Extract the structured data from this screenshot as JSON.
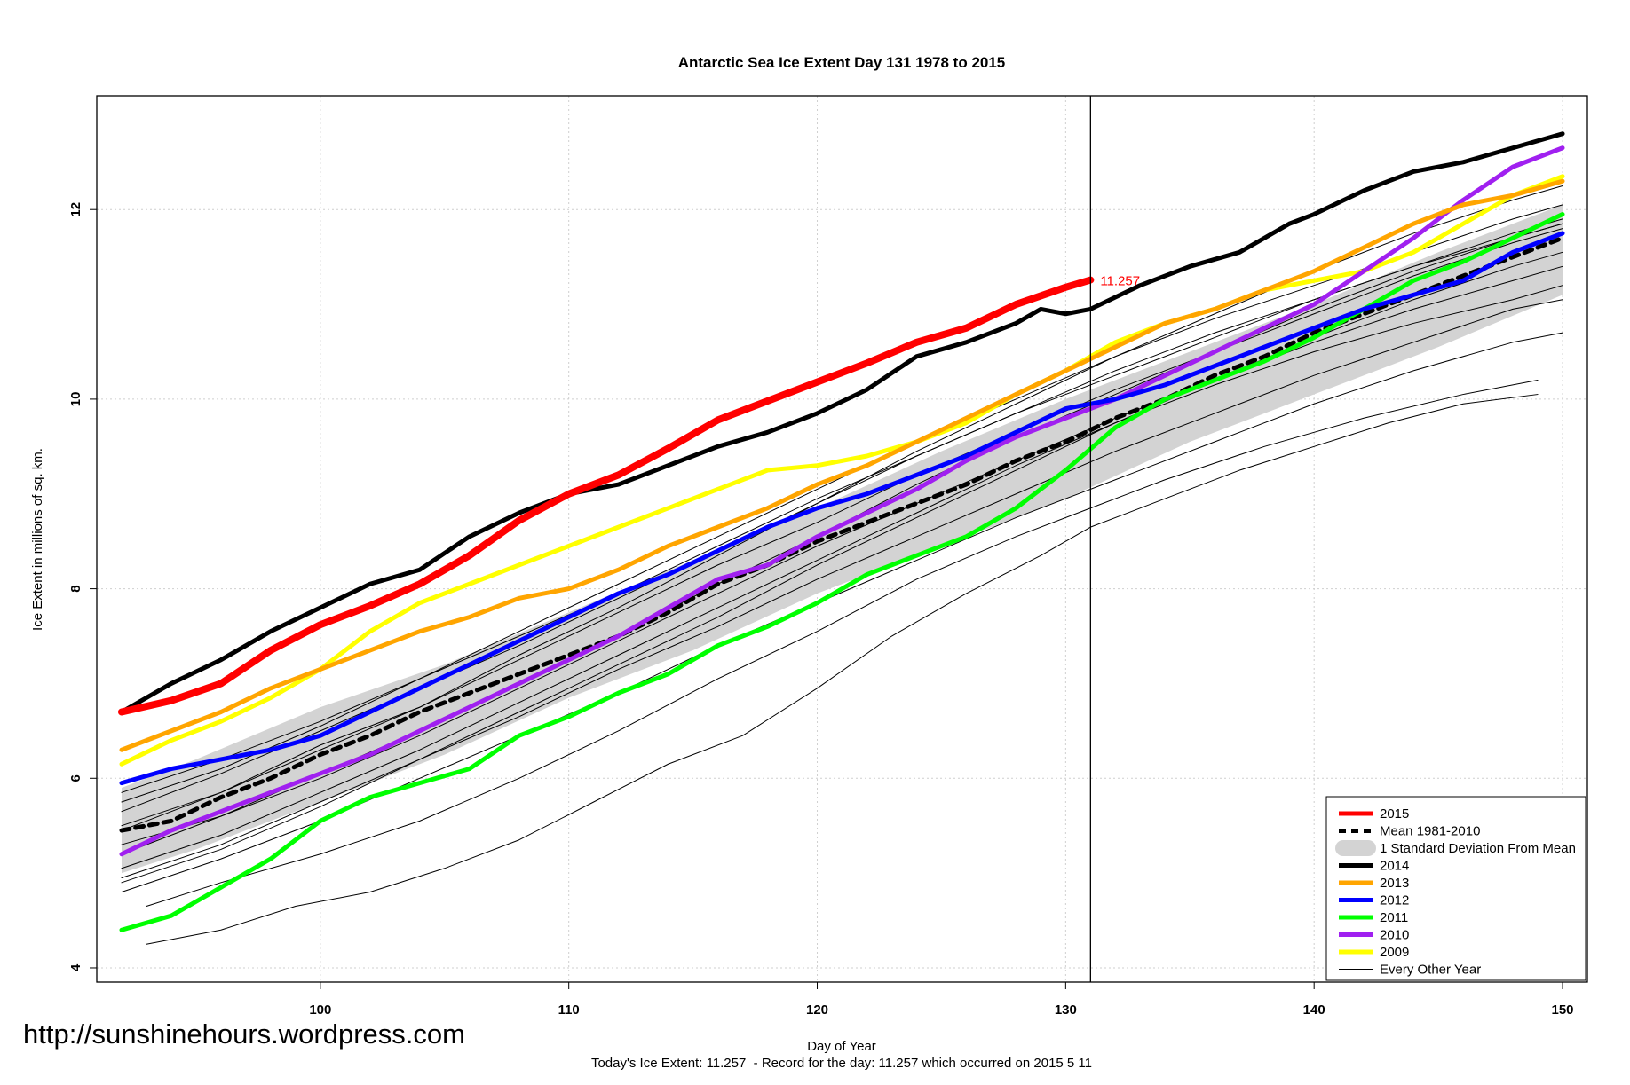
{
  "watermark": "http://sunshinehours.wordpress.com",
  "chart_data": {
    "type": "line",
    "title": "Antarctic Sea Ice Extent Day 131 1978 to 2015",
    "xlabel": "Day of Year",
    "ylabel": "Ice Extent in millions of sq. km.",
    "footnote": "Today's Ice Extent: 11.257  - Record for the day: 11.257 which occurred on 2015 5 11",
    "xlim": [
      91,
      151
    ],
    "ylim": [
      3.85,
      13.2
    ],
    "xticks": [
      100,
      110,
      120,
      130,
      140,
      150
    ],
    "yticks": [
      4,
      6,
      8,
      10,
      12
    ],
    "grid": true,
    "current_day": 131,
    "current_value_label": "11.257",
    "legend_position": "bottom-right",
    "legend": [
      {
        "label": "2015",
        "color": "#ff0000",
        "style": "thick"
      },
      {
        "label": "Mean 1981-2010",
        "color": "#000000",
        "style": "dashed"
      },
      {
        "label": "1 Standard Deviation From Mean",
        "color": "#d3d3d3",
        "style": "band"
      },
      {
        "label": "2014",
        "color": "#000000",
        "style": "thick"
      },
      {
        "label": "2013",
        "color": "#ffa500",
        "style": "thick"
      },
      {
        "label": "2012",
        "color": "#0000ff",
        "style": "thick"
      },
      {
        "label": "2011",
        "color": "#00ff00",
        "style": "thick"
      },
      {
        "label": "2010",
        "color": "#a020f0",
        "style": "thick"
      },
      {
        "label": "2009",
        "color": "#ffff00",
        "style": "thick"
      },
      {
        "label": "Every Other Year",
        "color": "#000000",
        "style": "thin"
      }
    ],
    "std_band": {
      "x": [
        92,
        95,
        100,
        105,
        110,
        115,
        120,
        125,
        130,
        135,
        140,
        145,
        150
      ],
      "upper": [
        5.9,
        6.2,
        6.75,
        7.2,
        7.75,
        8.3,
        8.85,
        9.45,
        10.0,
        10.5,
        11.0,
        11.55,
        12.05
      ],
      "lower": [
        5.0,
        5.25,
        5.75,
        6.25,
        6.85,
        7.35,
        7.95,
        8.45,
        8.95,
        9.55,
        10.05,
        10.55,
        11.1
      ]
    },
    "series": [
      {
        "name": "Every Other Year",
        "color": "#000000",
        "width": 1,
        "x": [
          92,
          96,
          100,
          104,
          108,
          112,
          116,
          120,
          124,
          128,
          132,
          136,
          140,
          144,
          148,
          150
        ],
        "y": [
          5.5,
          5.85,
          6.35,
          6.75,
          7.3,
          7.8,
          8.35,
          8.9,
          9.45,
          9.95,
          10.45,
          10.9,
          11.35,
          11.75,
          12.1,
          12.25
        ]
      },
      {
        "name": "Every Other Year",
        "color": "#000000",
        "width": 1,
        "x": [
          92,
          96,
          100,
          104,
          108,
          112,
          116,
          120,
          124,
          128,
          132,
          136,
          140,
          144,
          148,
          150
        ],
        "y": [
          5.2,
          5.6,
          6.05,
          6.5,
          7.0,
          7.5,
          8.05,
          8.55,
          9.1,
          9.6,
          10.05,
          10.5,
          10.95,
          11.35,
          11.7,
          11.85
        ]
      },
      {
        "name": "Every Other Year",
        "color": "#000000",
        "width": 1,
        "x": [
          92,
          96,
          100,
          104,
          108,
          112,
          116,
          120,
          124,
          128,
          132,
          136,
          140,
          144,
          148,
          150
        ],
        "y": [
          5.85,
          6.2,
          6.6,
          7.05,
          7.55,
          8.05,
          8.55,
          9.05,
          9.55,
          10.0,
          10.45,
          10.85,
          11.2,
          11.55,
          11.9,
          12.05
        ]
      },
      {
        "name": "Every Other Year",
        "color": "#000000",
        "width": 1,
        "x": [
          92,
          96,
          100,
          104,
          108,
          112,
          116,
          120,
          124,
          128,
          132,
          136,
          140,
          144,
          148,
          150
        ],
        "y": [
          4.95,
          5.3,
          5.75,
          6.2,
          6.7,
          7.2,
          7.7,
          8.25,
          8.75,
          9.25,
          9.75,
          10.2,
          10.65,
          11.05,
          11.4,
          11.55
        ]
      },
      {
        "name": "Every Other Year",
        "color": "#000000",
        "width": 1,
        "x": [
          92,
          96,
          100,
          104,
          108,
          112,
          116,
          120,
          124,
          128,
          132,
          136,
          140,
          144,
          148,
          150
        ],
        "y": [
          5.65,
          6.05,
          6.5,
          6.95,
          7.4,
          7.9,
          8.4,
          8.9,
          9.4,
          9.85,
          10.3,
          10.7,
          11.05,
          11.4,
          11.75,
          11.9
        ]
      },
      {
        "name": "Every Other Year",
        "color": "#000000",
        "width": 1,
        "x": [
          92,
          96,
          100,
          104,
          108,
          112,
          116,
          120,
          124,
          128,
          132,
          136,
          140,
          144,
          148,
          150
        ],
        "y": [
          5.3,
          5.6,
          6.0,
          6.45,
          6.95,
          7.45,
          7.95,
          8.45,
          8.9,
          9.35,
          9.8,
          10.2,
          10.6,
          10.95,
          11.25,
          11.4
        ]
      },
      {
        "name": "Every Other Year",
        "color": "#000000",
        "width": 1,
        "x": [
          92,
          96,
          100,
          104,
          108,
          112,
          116,
          120,
          124,
          128,
          132,
          136,
          140,
          144,
          148,
          150
        ],
        "y": [
          5.05,
          5.4,
          5.85,
          6.3,
          6.8,
          7.3,
          7.8,
          8.3,
          8.8,
          9.3,
          9.75,
          10.15,
          10.5,
          10.8,
          11.05,
          11.2
        ]
      },
      {
        "name": "Every Other Year",
        "color": "#000000",
        "width": 1,
        "x": [
          92,
          96,
          100,
          104,
          108,
          112,
          116,
          120,
          124,
          128,
          132,
          136,
          140,
          144,
          148,
          150
        ],
        "y": [
          5.75,
          6.1,
          6.55,
          7.05,
          7.5,
          7.95,
          8.45,
          8.95,
          9.4,
          9.85,
          10.25,
          10.65,
          11.05,
          11.4,
          11.7,
          11.85
        ]
      },
      {
        "name": "Every Other Year",
        "color": "#000000",
        "width": 1,
        "x": [
          92,
          96,
          100,
          104,
          108,
          112,
          116,
          120,
          124,
          128,
          132,
          136,
          140,
          144,
          148,
          150
        ],
        "y": [
          4.9,
          5.25,
          5.7,
          6.2,
          6.65,
          7.15,
          7.6,
          8.1,
          8.55,
          9.0,
          9.45,
          9.85,
          10.25,
          10.6,
          10.95,
          11.05
        ]
      },
      {
        "name": "Every Other Year",
        "color": "#000000",
        "width": 1,
        "x": [
          92,
          96,
          100,
          104,
          108,
          112,
          116,
          120,
          124,
          128,
          132,
          136,
          140,
          144,
          148,
          150
        ],
        "y": [
          5.45,
          5.85,
          6.3,
          6.75,
          7.25,
          7.75,
          8.25,
          8.7,
          9.2,
          9.65,
          10.1,
          10.5,
          10.9,
          11.3,
          11.65,
          11.8
        ]
      },
      {
        "name": "Every Other Year",
        "color": "#000000",
        "width": 1,
        "x": [
          92,
          96,
          100,
          104,
          108,
          112,
          116,
          120,
          124,
          128,
          132,
          136,
          140,
          144,
          148,
          150
        ],
        "y": [
          4.8,
          5.15,
          5.55,
          6.0,
          6.45,
          6.9,
          7.4,
          7.85,
          8.3,
          8.75,
          9.15,
          9.55,
          9.95,
          10.3,
          10.6,
          10.7
        ]
      },
      {
        "name": "Every Other Year",
        "color": "#000000",
        "width": 1,
        "x": [
          93,
          96,
          100,
          104,
          108,
          112,
          116,
          120,
          124,
          128,
          131,
          134,
          138,
          142,
          146,
          149
        ],
        "y": [
          4.65,
          4.9,
          5.2,
          5.55,
          6.0,
          6.5,
          7.05,
          7.55,
          8.1,
          8.55,
          8.85,
          9.15,
          9.5,
          9.8,
          10.05,
          10.2
        ]
      },
      {
        "name": "Every Other Year",
        "color": "#000000",
        "width": 1,
        "x": [
          93,
          96,
          99,
          102,
          105,
          108,
          111,
          114,
          117,
          120,
          123,
          126,
          129,
          131,
          134,
          137,
          140,
          143,
          146,
          149
        ],
        "y": [
          4.25,
          4.4,
          4.65,
          4.8,
          5.05,
          5.35,
          5.75,
          6.15,
          6.45,
          6.95,
          7.5,
          7.95,
          8.35,
          8.65,
          8.95,
          9.25,
          9.5,
          9.75,
          9.95,
          10.05
        ]
      },
      {
        "name": "Mean 1981-2010",
        "color": "#000000",
        "width": 5,
        "dashed": true,
        "x": [
          92,
          94,
          96,
          98,
          100,
          102,
          104,
          106,
          108,
          110,
          112,
          114,
          116,
          118,
          120,
          122,
          124,
          126,
          128,
          130,
          132,
          134,
          136,
          138,
          140,
          142,
          144,
          146,
          148,
          150
        ],
        "y": [
          5.45,
          5.55,
          5.8,
          6.0,
          6.25,
          6.45,
          6.7,
          6.9,
          7.1,
          7.3,
          7.5,
          7.75,
          8.05,
          8.25,
          8.5,
          8.7,
          8.9,
          9.1,
          9.35,
          9.55,
          9.8,
          10.0,
          10.25,
          10.45,
          10.7,
          10.9,
          11.1,
          11.3,
          11.5,
          11.7
        ]
      },
      {
        "name": "2009",
        "color": "#ffff00",
        "width": 5,
        "x": [
          92,
          94,
          96,
          98,
          100,
          102,
          104,
          106,
          108,
          110,
          112,
          114,
          116,
          118,
          120,
          122,
          124,
          126,
          128,
          130,
          132,
          134,
          136,
          138,
          140,
          142,
          144,
          146,
          148,
          150
        ],
        "y": [
          6.15,
          6.4,
          6.6,
          6.85,
          7.15,
          7.55,
          7.85,
          8.05,
          8.25,
          8.45,
          8.65,
          8.85,
          9.05,
          9.25,
          9.3,
          9.4,
          9.55,
          9.75,
          10.05,
          10.3,
          10.6,
          10.8,
          10.95,
          11.15,
          11.25,
          11.35,
          11.55,
          11.85,
          12.15,
          12.35
        ]
      },
      {
        "name": "2010",
        "color": "#a020f0",
        "width": 5,
        "x": [
          92,
          94,
          96,
          98,
          100,
          102,
          104,
          106,
          108,
          110,
          112,
          114,
          116,
          118,
          120,
          122,
          124,
          126,
          128,
          130,
          132,
          134,
          136,
          138,
          140,
          142,
          144,
          146,
          148,
          150
        ],
        "y": [
          5.2,
          5.45,
          5.65,
          5.85,
          6.05,
          6.25,
          6.5,
          6.75,
          7.0,
          7.25,
          7.5,
          7.8,
          8.1,
          8.25,
          8.55,
          8.8,
          9.05,
          9.35,
          9.6,
          9.8,
          10.0,
          10.25,
          10.5,
          10.75,
          11.0,
          11.35,
          11.7,
          12.1,
          12.45,
          12.65
        ]
      },
      {
        "name": "2011",
        "color": "#00ff00",
        "width": 5,
        "x": [
          92,
          94,
          96,
          98,
          100,
          102,
          104,
          106,
          108,
          110,
          112,
          114,
          116,
          118,
          120,
          122,
          124,
          126,
          128,
          130,
          132,
          134,
          136,
          138,
          140,
          142,
          144,
          146,
          148,
          150
        ],
        "y": [
          4.4,
          4.55,
          4.85,
          5.15,
          5.55,
          5.8,
          5.95,
          6.1,
          6.45,
          6.65,
          6.9,
          7.1,
          7.4,
          7.6,
          7.85,
          8.15,
          8.35,
          8.55,
          8.85,
          9.25,
          9.7,
          10.0,
          10.2,
          10.4,
          10.65,
          10.95,
          11.25,
          11.45,
          11.7,
          11.95
        ]
      },
      {
        "name": "2012",
        "color": "#0000ff",
        "width": 5,
        "x": [
          92,
          94,
          96,
          98,
          100,
          102,
          104,
          106,
          108,
          110,
          112,
          114,
          116,
          118,
          120,
          122,
          124,
          126,
          128,
          130,
          132,
          134,
          136,
          138,
          140,
          142,
          144,
          146,
          148,
          150
        ],
        "y": [
          5.95,
          6.1,
          6.2,
          6.3,
          6.45,
          6.7,
          6.95,
          7.2,
          7.45,
          7.7,
          7.95,
          8.15,
          8.4,
          8.65,
          8.85,
          9.0,
          9.2,
          9.4,
          9.65,
          9.9,
          10.0,
          10.15,
          10.35,
          10.55,
          10.75,
          10.95,
          11.1,
          11.25,
          11.55,
          11.75
        ]
      },
      {
        "name": "2013",
        "color": "#ffa500",
        "width": 5,
        "x": [
          92,
          94,
          96,
          98,
          100,
          102,
          104,
          106,
          108,
          110,
          112,
          114,
          116,
          118,
          120,
          122,
          124,
          126,
          128,
          130,
          132,
          134,
          136,
          138,
          140,
          142,
          144,
          146,
          148,
          150
        ],
        "y": [
          6.3,
          6.5,
          6.7,
          6.95,
          7.15,
          7.35,
          7.55,
          7.7,
          7.9,
          8.0,
          8.2,
          8.45,
          8.65,
          8.85,
          9.1,
          9.3,
          9.55,
          9.8,
          10.05,
          10.3,
          10.55,
          10.8,
          10.95,
          11.15,
          11.35,
          11.6,
          11.85,
          12.05,
          12.15,
          12.3
        ]
      },
      {
        "name": "2014",
        "color": "#000000",
        "width": 5,
        "x": [
          92,
          94,
          96,
          98,
          100,
          102,
          104,
          106,
          108,
          110,
          112,
          114,
          116,
          118,
          120,
          122,
          124,
          126,
          128,
          129,
          130,
          131,
          133,
          135,
          137,
          139,
          140,
          142,
          144,
          146,
          148,
          150
        ],
        "y": [
          6.7,
          7.0,
          7.25,
          7.55,
          7.8,
          8.05,
          8.2,
          8.55,
          8.8,
          9.0,
          9.1,
          9.3,
          9.5,
          9.65,
          9.85,
          10.1,
          10.45,
          10.6,
          10.8,
          10.95,
          10.9,
          10.95,
          11.2,
          11.4,
          11.55,
          11.85,
          11.95,
          12.2,
          12.4,
          12.5,
          12.65,
          12.8
        ]
      },
      {
        "name": "2015",
        "color": "#ff0000",
        "width": 8,
        "x": [
          92,
          94,
          96,
          98,
          100,
          102,
          104,
          106,
          108,
          110,
          112,
          114,
          116,
          118,
          120,
          122,
          124,
          126,
          128,
          130,
          131
        ],
        "y": [
          6.7,
          6.82,
          7.0,
          7.35,
          7.62,
          7.82,
          8.05,
          8.35,
          8.72,
          9.0,
          9.2,
          9.48,
          9.78,
          9.98,
          10.18,
          10.38,
          10.6,
          10.75,
          11.0,
          11.18,
          11.257
        ]
      }
    ]
  }
}
